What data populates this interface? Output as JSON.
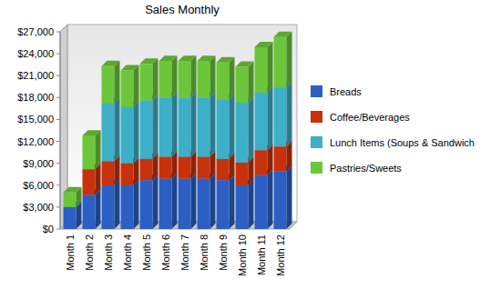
{
  "chart_data": {
    "type": "bar",
    "title": "Sales Monthly",
    "stacked": true,
    "grid": false,
    "legend": "right",
    "categories": [
      "Month 1",
      "Month 2",
      "Month 3",
      "Month 4",
      "Month 5",
      "Month 6",
      "Month 7",
      "Month 8",
      "Month 9",
      "Month 10",
      "Month 11",
      "Month 12"
    ],
    "series": [
      {
        "name": "Breads",
        "color": "#2b5fc4",
        "values": [
          3000,
          4700,
          6000,
          6000,
          6700,
          6900,
          6900,
          6900,
          6700,
          6000,
          7400,
          7900
        ]
      },
      {
        "name": "Coffee/Beverages",
        "color": "#c8320a",
        "values": [
          0,
          3500,
          3300,
          3000,
          2900,
          3000,
          3000,
          3000,
          2900,
          3100,
          3400,
          3400
        ]
      },
      {
        "name": "Lunch Items (Soups & Sandwich",
        "color": "#3cb0c8",
        "values": [
          0,
          0,
          7900,
          7700,
          8000,
          8100,
          8100,
          8100,
          8100,
          8200,
          7900,
          8100
        ]
      },
      {
        "name": "Pastries/Sweets",
        "color": "#6cc63a",
        "values": [
          2000,
          4600,
          5100,
          5000,
          5000,
          5000,
          5000,
          5000,
          5100,
          4900,
          6200,
          6900
        ]
      }
    ],
    "ylim": [
      0,
      27000
    ],
    "yticks": [
      {
        "value": 0,
        "label": "$0"
      },
      {
        "value": 3000,
        "label": "$3,000"
      },
      {
        "value": 6000,
        "label": "$6,000"
      },
      {
        "value": 9000,
        "label": "$9,000"
      },
      {
        "value": 12000,
        "label": "$12,000"
      },
      {
        "value": 15000,
        "label": "$15,000"
      },
      {
        "value": 18000,
        "label": "$18,000"
      },
      {
        "value": 21000,
        "label": "$21,000"
      },
      {
        "value": 24000,
        "label": "$24,000"
      },
      {
        "value": 27000,
        "label": "$27,000"
      }
    ]
  }
}
